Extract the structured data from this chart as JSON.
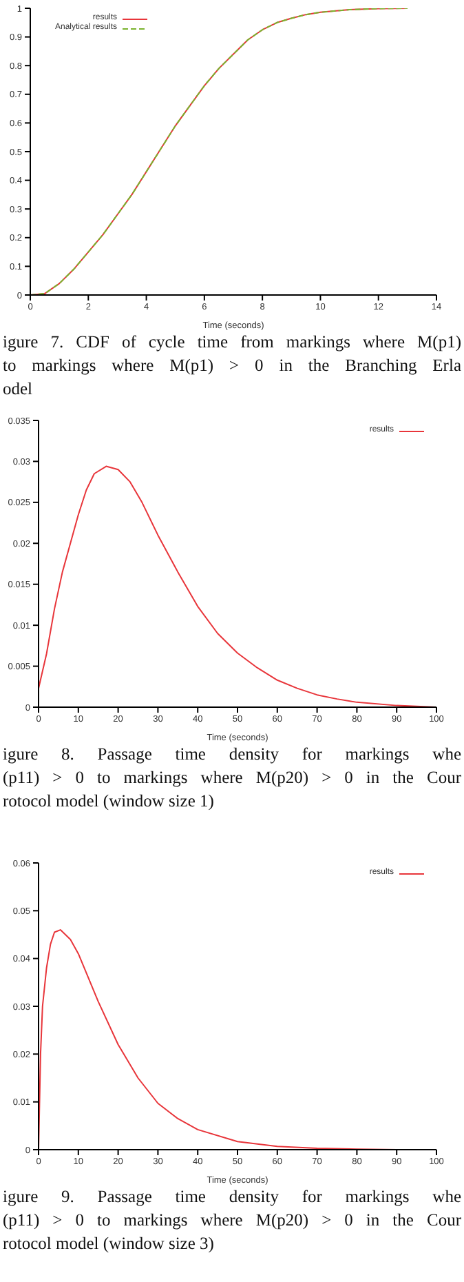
{
  "chart_data": [
    {
      "type": "line",
      "xlabel": "Time (seconds)",
      "xlim": [
        0,
        14
      ],
      "xticks": [
        0,
        2,
        4,
        6,
        8,
        10,
        12,
        14
      ],
      "ylim": [
        0,
        1
      ],
      "yticks": [
        0,
        0.1,
        0.2,
        0.3,
        0.4,
        0.5,
        0.6,
        0.7,
        0.8,
        0.9,
        1
      ],
      "legend": "top left",
      "grid": false,
      "marker": "none",
      "series": [
        {
          "name": "results",
          "color": "#e8353a",
          "line_style": "solid",
          "x": [
            0,
            0.5,
            1,
            1.5,
            2,
            2.5,
            3,
            3.5,
            4,
            4.5,
            5,
            5.5,
            6,
            6.5,
            7,
            7.5,
            8,
            8.5,
            9,
            9.5,
            10,
            11,
            12,
            13
          ],
          "values": [
            0,
            0.005,
            0.04,
            0.09,
            0.15,
            0.21,
            0.28,
            0.35,
            0.43,
            0.51,
            0.59,
            0.66,
            0.73,
            0.79,
            0.84,
            0.89,
            0.925,
            0.95,
            0.965,
            0.978,
            0.986,
            0.995,
            0.999,
            1
          ]
        },
        {
          "name": "Analytical results",
          "color": "#7ab32e",
          "line_style": "dashed",
          "x": [
            0,
            0.5,
            1,
            1.5,
            2,
            2.5,
            3,
            3.5,
            4,
            4.5,
            5,
            5.5,
            6,
            6.5,
            7,
            7.5,
            8,
            8.5,
            9,
            9.5,
            10,
            11,
            12,
            13
          ],
          "values": [
            0,
            0.005,
            0.04,
            0.09,
            0.15,
            0.21,
            0.28,
            0.35,
            0.43,
            0.51,
            0.59,
            0.66,
            0.73,
            0.79,
            0.84,
            0.89,
            0.925,
            0.95,
            0.965,
            0.978,
            0.986,
            0.995,
            0.999,
            1
          ]
        }
      ],
      "annotations": [
        "igure 7.  CDF of cycle time from markings where M(p1)\nto markings where M(p1) > 0 in the Branching Erla\nodel"
      ]
    },
    {
      "type": "line",
      "xlabel": "Time (seconds)",
      "xlim": [
        0,
        100
      ],
      "xticks": [
        0,
        10,
        20,
        30,
        40,
        50,
        60,
        70,
        80,
        90,
        100
      ],
      "ylim": [
        0,
        0.035
      ],
      "yticks": [
        0,
        0.005,
        0.01,
        0.015,
        0.02,
        0.025,
        0.03,
        0.035
      ],
      "legend": "top right",
      "grid": false,
      "marker": "none",
      "series": [
        {
          "name": "results",
          "color": "#e8353a",
          "line_style": "solid",
          "x": [
            0,
            2,
            4,
            6,
            8,
            10,
            12,
            14,
            17,
            20,
            23,
            26,
            30,
            35,
            40,
            45,
            50,
            55,
            60,
            65,
            70,
            75,
            80,
            90,
            100
          ],
          "values": [
            0.0023,
            0.0065,
            0.012,
            0.0165,
            0.02,
            0.0235,
            0.0265,
            0.0285,
            0.0294,
            0.029,
            0.0275,
            0.025,
            0.021,
            0.0165,
            0.0123,
            0.009,
            0.0066,
            0.0048,
            0.0033,
            0.0023,
            0.0015,
            0.001,
            0.0006,
            0.0002,
            0
          ]
        }
      ],
      "annotations": [
        "igure  8.  Passage  time  density  for  markings  whe\n(p11) > 0 to markings where M(p20) > 0 in the Cour\nrotocol model (window size 1)"
      ]
    },
    {
      "type": "line",
      "xlabel": "Time (seconds)",
      "xlim": [
        0,
        100
      ],
      "xticks": [
        0,
        10,
        20,
        30,
        40,
        50,
        60,
        70,
        80,
        90,
        100
      ],
      "ylim": [
        0,
        0.06
      ],
      "yticks": [
        0,
        0.01,
        0.02,
        0.03,
        0.04,
        0.05,
        0.06
      ],
      "legend": "top right",
      "grid": false,
      "marker": "none",
      "series": [
        {
          "name": "results",
          "color": "#e8353a",
          "line_style": "solid",
          "x": [
            0,
            0.5,
            1,
            2,
            3,
            4,
            5.5,
            8,
            10,
            15,
            20,
            25,
            30,
            35,
            40,
            50,
            60,
            70,
            80,
            90,
            100
          ],
          "values": [
            0,
            0.02,
            0.03,
            0.038,
            0.043,
            0.0455,
            0.046,
            0.044,
            0.041,
            0.031,
            0.022,
            0.015,
            0.0097,
            0.0065,
            0.0042,
            0.0017,
            0.0007,
            0.0003,
            0.0001,
            0,
            0
          ]
        }
      ],
      "annotations": [
        "igure  9.  Passage  time  density  for  markings  whe\n(p11) > 0 to markings where M(p20) > 0 in the Cour\nrotocol model (window size 3)"
      ]
    }
  ]
}
